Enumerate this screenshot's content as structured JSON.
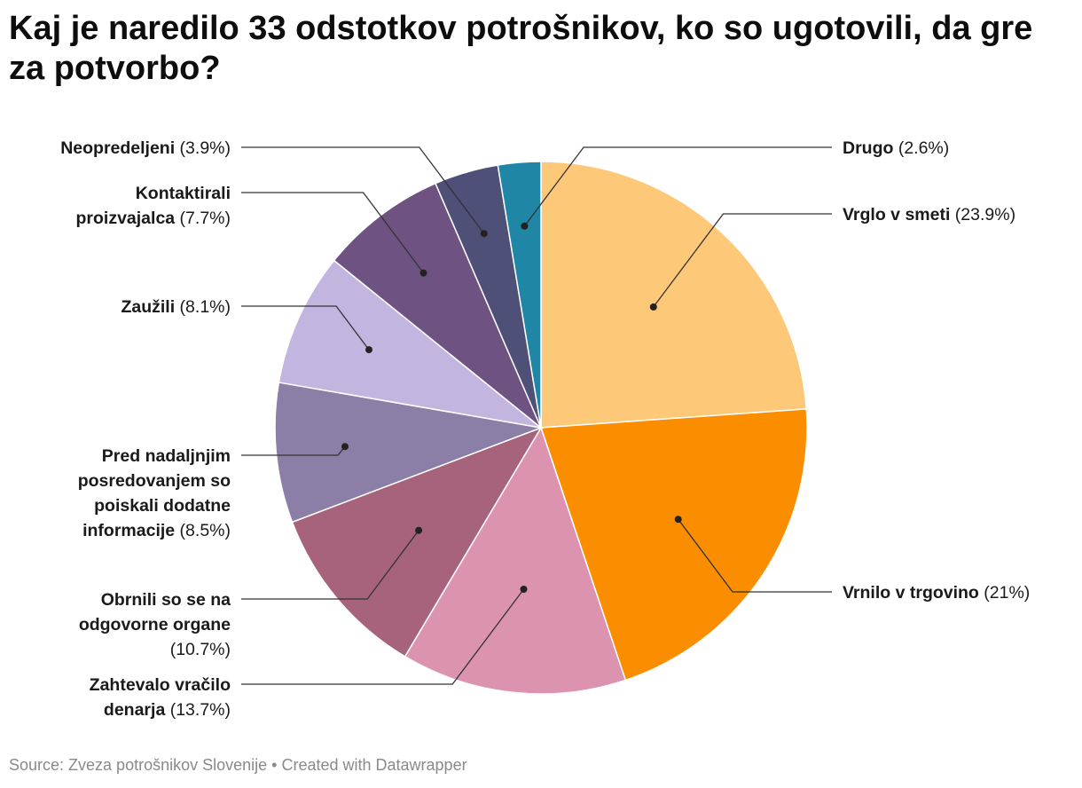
{
  "title": "Kaj je naredilo 33 odstotkov potrošnikov, ko so ugotovili, da gre za potvorbo?",
  "chart_data": {
    "type": "pie",
    "unit": "%",
    "slices": [
      {
        "name": "Vrglo v smeti",
        "value": 23.9,
        "pct": "23.9%",
        "color": "#fdc978"
      },
      {
        "name": "Vrnilo v trgovino",
        "value": 21,
        "pct": "21%",
        "color": "#fa8d00"
      },
      {
        "name": "Zahtevalo vračilo denarja",
        "value": 13.7,
        "pct": "13.7%",
        "color": "#dc93b0"
      },
      {
        "name": "Obrnili so se na odgovorne organe",
        "value": 10.7,
        "pct": "10.7%",
        "color": "#a6637b"
      },
      {
        "name": "Pred nadaljnjim posredovanjem so poiskali dodatne informacije",
        "value": 8.5,
        "pct": "8.5%",
        "color": "#8b7ea7"
      },
      {
        "name": "Zaužili",
        "value": 8.1,
        "pct": "8.1%",
        "color": "#c2b6e1"
      },
      {
        "name": "Kontaktirali proizvajalca",
        "value": 7.7,
        "pct": "7.7%",
        "color": "#6e5281"
      },
      {
        "name": "Neopredeljeni",
        "value": 3.9,
        "pct": "3.9%",
        "color": "#4e5078"
      },
      {
        "name": "Drugo",
        "value": 2.6,
        "pct": "2.6%",
        "color": "#1f86a5"
      }
    ]
  },
  "footer": {
    "source": "Source: Zveza potrošnikov Slovenije",
    "separator": " • ",
    "credit": "Created with Datawrapper"
  }
}
